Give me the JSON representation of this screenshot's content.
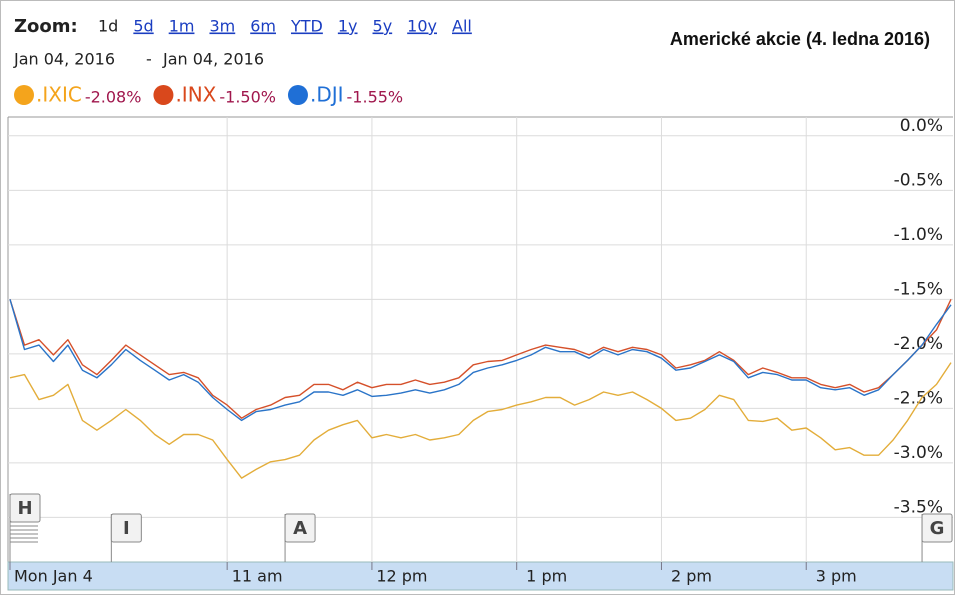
{
  "chart_data": {
    "type": "line",
    "title": "Americké akcie (4. ledna 2016)",
    "zoom": {
      "label": "Zoom:",
      "options": [
        "1d",
        "5d",
        "1m",
        "3m",
        "6m",
        "YTD",
        "1y",
        "5y",
        "10y",
        "All"
      ],
      "selected": "1d"
    },
    "date_range": {
      "from": "Jan 04, 2016",
      "separator": "-",
      "to": "Jan 04, 2016"
    },
    "x": [
      9.5,
      9.6,
      9.7,
      9.8,
      9.9,
      10.0,
      10.1,
      10.2,
      10.3,
      10.4,
      10.5,
      10.6,
      10.7,
      10.8,
      10.9,
      11.0,
      11.1,
      11.2,
      11.3,
      11.4,
      11.5,
      11.6,
      11.7,
      11.8,
      11.9,
      12.0,
      12.1,
      12.2,
      12.3,
      12.4,
      12.5,
      12.6,
      12.7,
      12.8,
      12.9,
      13.0,
      13.1,
      13.2,
      13.3,
      13.4,
      13.5,
      13.6,
      13.7,
      13.8,
      13.9,
      14.0,
      14.1,
      14.2,
      14.3,
      14.4,
      14.5,
      14.6,
      14.7,
      14.8,
      14.9,
      15.0,
      15.1,
      15.2,
      15.3,
      15.4,
      15.5,
      15.6,
      15.7,
      15.8,
      15.9,
      16.0
    ],
    "series": [
      {
        "name": ".IXIC",
        "change_label": "-2.08%",
        "color": "#e3ad3a",
        "legend_color": "#f4a41c",
        "values": [
          -2.22,
          -2.19,
          -2.42,
          -2.38,
          -2.28,
          -2.61,
          -2.7,
          -2.61,
          -2.51,
          -2.61,
          -2.74,
          -2.83,
          -2.74,
          -2.74,
          -2.79,
          -2.97,
          -3.14,
          -3.06,
          -2.99,
          -2.97,
          -2.93,
          -2.79,
          -2.7,
          -2.65,
          -2.61,
          -2.77,
          -2.74,
          -2.77,
          -2.74,
          -2.79,
          -2.77,
          -2.74,
          -2.61,
          -2.53,
          -2.51,
          -2.47,
          -2.44,
          -2.4,
          -2.4,
          -2.47,
          -2.42,
          -2.35,
          -2.38,
          -2.35,
          -2.42,
          -2.5,
          -2.61,
          -2.59,
          -2.51,
          -2.38,
          -2.42,
          -2.61,
          -2.62,
          -2.59,
          -2.7,
          -2.68,
          -2.77,
          -2.88,
          -2.86,
          -2.93,
          -2.93,
          -2.79,
          -2.61,
          -2.4,
          -2.28,
          -2.08
        ]
      },
      {
        "name": ".INX",
        "change_label": "-1.50%",
        "color": "#d5502a",
        "legend_color": "#d9481c",
        "values": [
          -1.5,
          -1.92,
          -1.87,
          -2.01,
          -1.87,
          -2.1,
          -2.19,
          -2.06,
          -1.92,
          -2.01,
          -2.1,
          -2.19,
          -2.17,
          -2.22,
          -2.38,
          -2.47,
          -2.59,
          -2.51,
          -2.47,
          -2.4,
          -2.38,
          -2.28,
          -2.28,
          -2.33,
          -2.26,
          -2.31,
          -2.28,
          -2.28,
          -2.24,
          -2.28,
          -2.26,
          -2.22,
          -2.1,
          -2.07,
          -2.06,
          -2.01,
          -1.96,
          -1.92,
          -1.94,
          -1.96,
          -2.01,
          -1.94,
          -1.98,
          -1.94,
          -1.96,
          -2.01,
          -2.13,
          -2.1,
          -2.06,
          -1.98,
          -2.06,
          -2.19,
          -2.13,
          -2.17,
          -2.22,
          -2.22,
          -2.28,
          -2.31,
          -2.28,
          -2.35,
          -2.31,
          -2.19,
          -2.06,
          -1.92,
          -1.78,
          -1.5
        ]
      },
      {
        "name": ".DJI",
        "change_label": "-1.55%",
        "color": "#2a74c8",
        "legend_color": "#1f6fd6",
        "values": [
          -1.5,
          -1.96,
          -1.92,
          -2.07,
          -1.92,
          -2.15,
          -2.22,
          -2.1,
          -1.96,
          -2.06,
          -2.15,
          -2.24,
          -2.19,
          -2.26,
          -2.4,
          -2.51,
          -2.61,
          -2.53,
          -2.51,
          -2.47,
          -2.44,
          -2.35,
          -2.35,
          -2.38,
          -2.33,
          -2.39,
          -2.38,
          -2.36,
          -2.33,
          -2.36,
          -2.33,
          -2.28,
          -2.17,
          -2.13,
          -2.1,
          -2.06,
          -2.01,
          -1.94,
          -1.98,
          -1.98,
          -2.04,
          -1.96,
          -2.01,
          -1.96,
          -1.98,
          -2.04,
          -2.15,
          -2.13,
          -2.07,
          -2.01,
          -2.07,
          -2.22,
          -2.17,
          -2.19,
          -2.24,
          -2.24,
          -2.31,
          -2.33,
          -2.31,
          -2.38,
          -2.33,
          -2.19,
          -2.06,
          -1.92,
          -1.73,
          -1.55
        ]
      }
    ],
    "xlim": [
      9.5,
      16.0
    ],
    "xticks": [
      {
        "value": 9.5,
        "label": "Mon Jan 4"
      },
      {
        "value": 11,
        "label": "11 am"
      },
      {
        "value": 12,
        "label": "12 pm"
      },
      {
        "value": 13,
        "label": "1 pm"
      },
      {
        "value": 14,
        "label": "2 pm"
      },
      {
        "value": 15,
        "label": "3 pm"
      }
    ],
    "ylim": [
      -3.9,
      0.2
    ],
    "yticks": [
      {
        "value": 0,
        "label": "0.0%"
      },
      {
        "value": -0.5,
        "label": "-0.5%"
      },
      {
        "value": -1.0,
        "label": "-1.0%"
      },
      {
        "value": -1.5,
        "label": "-1.5%"
      },
      {
        "value": -2.0,
        "label": "-2.0%"
      },
      {
        "value": -2.5,
        "label": "-2.5%"
      },
      {
        "value": -3.0,
        "label": "-3.0%"
      },
      {
        "value": -3.5,
        "label": "-3.5%"
      }
    ],
    "grid": true,
    "flags": [
      {
        "label": "H",
        "x": 9.5
      },
      {
        "label": "I",
        "x": 10.2
      },
      {
        "label": "A",
        "x": 11.4
      },
      {
        "label": "G",
        "x": 15.8
      }
    ]
  }
}
